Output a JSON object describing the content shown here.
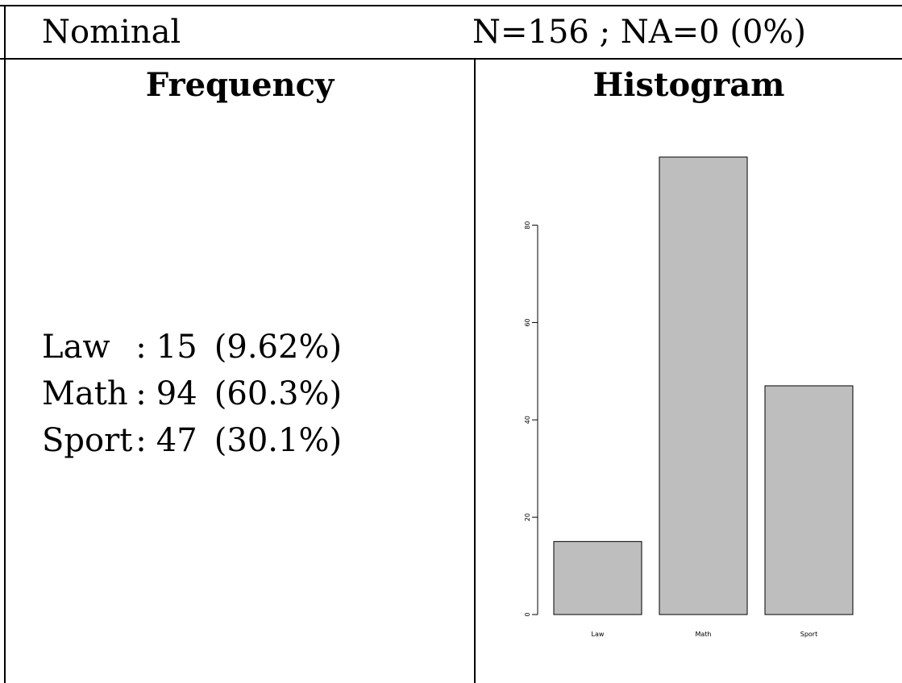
{
  "header": {
    "variable_type": "Nominal",
    "summary": "N=156 ; NA=0 (0%)"
  },
  "columns": {
    "frequency_title": "Frequency",
    "histogram_title": "Histogram"
  },
  "frequency": {
    "rows": [
      {
        "category": "Law",
        "separator": ":",
        "count": "15",
        "percent": "(9.62%)"
      },
      {
        "category": "Math",
        "separator": ":",
        "count": "94",
        "percent": "(60.3%)"
      },
      {
        "category": "Sport",
        "separator": ":",
        "count": "47",
        "percent": "(30.1%)"
      }
    ]
  },
  "chart_data": {
    "type": "bar",
    "categories": [
      "Law",
      "Math",
      "Sport"
    ],
    "values": [
      15,
      94,
      47
    ],
    "title": "",
    "xlabel": "",
    "ylabel": "",
    "ylim": [
      0,
      94
    ],
    "yticks": [
      0,
      20,
      40,
      60,
      80
    ],
    "bar_color": "#bebebe",
    "grid": false,
    "legend": "none"
  }
}
